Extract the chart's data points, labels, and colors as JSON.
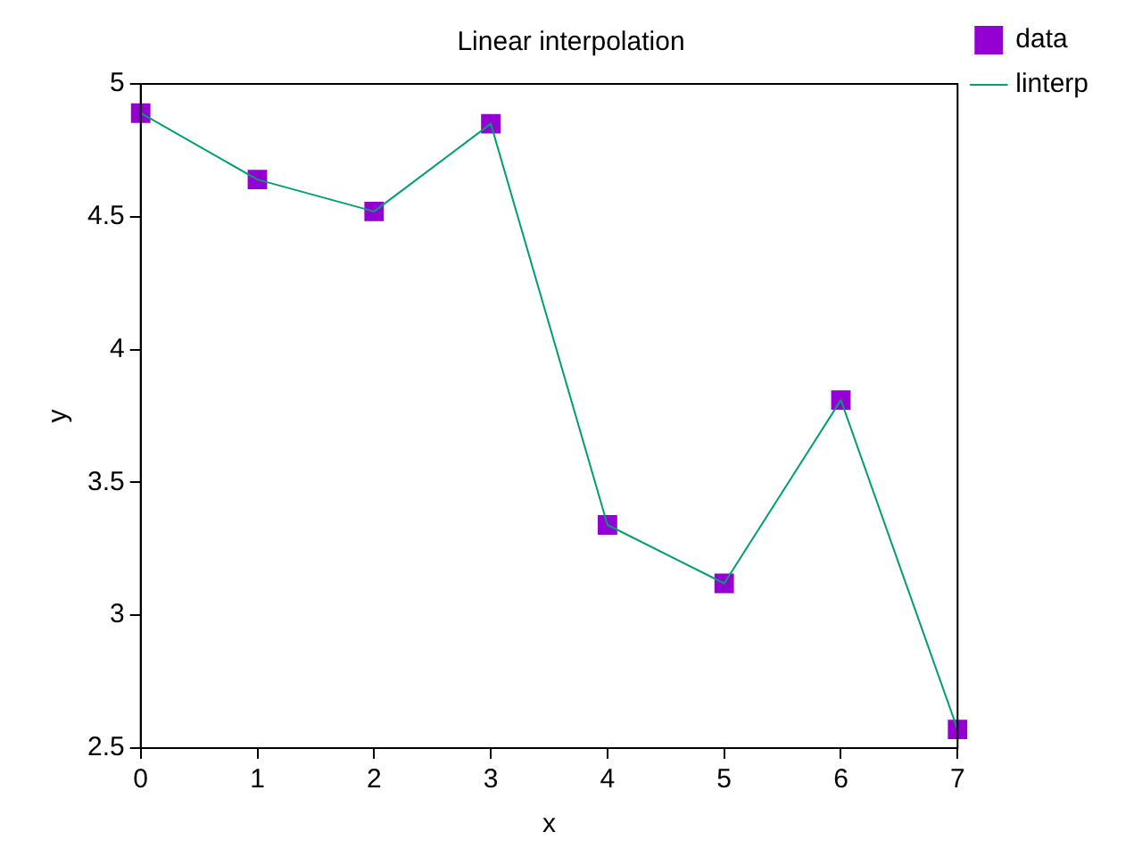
{
  "chart_data": {
    "type": "scatter",
    "title": "Linear interpolation",
    "xlabel": "x",
    "ylabel": "y",
    "x": [
      0,
      1,
      2,
      3,
      4,
      5,
      6,
      7
    ],
    "series": [
      {
        "name": "data",
        "color": "#9400d3",
        "marker": "square",
        "values": [
          4.89,
          4.64,
          4.52,
          4.85,
          3.34,
          3.12,
          3.81,
          2.57
        ]
      },
      {
        "name": "linterp",
        "type": "line",
        "color": "#009e73",
        "marker": "none",
        "values": [
          4.89,
          4.64,
          4.52,
          4.85,
          3.34,
          3.12,
          3.81,
          2.57
        ]
      }
    ],
    "xlim": [
      0,
      7
    ],
    "xticks": [
      0,
      1,
      2,
      3,
      4,
      5,
      6,
      7
    ],
    "ylim": [
      2.5,
      5
    ],
    "yticks": [
      2.5,
      3,
      3.5,
      4,
      4.5,
      5
    ],
    "grid": false,
    "legend": "top right"
  }
}
